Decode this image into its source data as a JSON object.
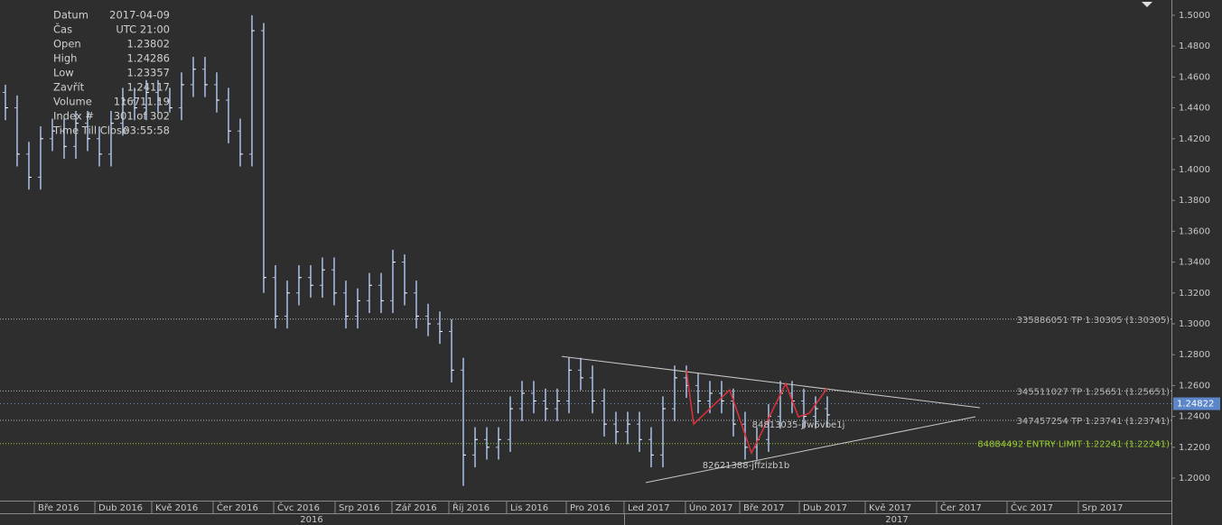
{
  "chart_data": {
    "type": "ohlc",
    "info": [
      [
        "Datum",
        "2017-04-09"
      ],
      [
        "Čas",
        "UTC 21:00"
      ],
      [
        "Open",
        "1.23802"
      ],
      [
        "High",
        "1.24286"
      ],
      [
        "Low",
        "1.23357"
      ],
      [
        "Zavřít",
        "1.24117"
      ],
      [
        "Volume",
        "116711.19"
      ],
      [
        "Index #",
        "301 of 302"
      ],
      [
        "Time Till Close",
        "03:55:58"
      ]
    ],
    "color": "#a9c1e6",
    "open": [
      1.45,
      1.44,
      1.41,
      1.395,
      1.42,
      1.425,
      1.415,
      1.43,
      1.42,
      1.41,
      1.43,
      1.445,
      1.44,
      1.45,
      1.445,
      1.44,
      1.455,
      1.465,
      1.455,
      1.445,
      1.425,
      1.41,
      1.49,
      1.33,
      1.305,
      1.32,
      1.33,
      1.325,
      1.335,
      1.32,
      1.305,
      1.315,
      1.325,
      1.315,
      1.34,
      1.32,
      1.305,
      1.3,
      1.295,
      1.27,
      1.215,
      1.225,
      1.22,
      1.225,
      1.245,
      1.255,
      1.25,
      1.245,
      1.25,
      1.27,
      1.265,
      1.25,
      1.235,
      1.23,
      1.235,
      1.225,
      1.215,
      1.245,
      1.265,
      1.26,
      1.25,
      1.255,
      1.25,
      1.235,
      1.22,
      1.225,
      1.24,
      1.255,
      1.25,
      1.24,
      1.245
    ],
    "high": [
      1.455,
      1.448,
      1.418,
      1.428,
      1.433,
      1.433,
      1.438,
      1.438,
      1.428,
      1.438,
      1.453,
      1.453,
      1.458,
      1.458,
      1.453,
      1.463,
      1.473,
      1.473,
      1.463,
      1.453,
      1.433,
      1.5,
      1.495,
      1.338,
      1.328,
      1.338,
      1.338,
      1.343,
      1.343,
      1.328,
      1.323,
      1.333,
      1.333,
      1.348,
      1.345,
      1.328,
      1.313,
      1.308,
      1.303,
      1.278,
      1.233,
      1.233,
      1.233,
      1.253,
      1.263,
      1.263,
      1.258,
      1.258,
      1.278,
      1.278,
      1.273,
      1.258,
      1.243,
      1.243,
      1.243,
      1.233,
      1.253,
      1.273,
      1.273,
      1.268,
      1.263,
      1.263,
      1.258,
      1.243,
      1.233,
      1.248,
      1.263,
      1.263,
      1.258,
      1.253,
      1.253
    ],
    "low": [
      1.432,
      1.402,
      1.387,
      1.387,
      1.412,
      1.407,
      1.407,
      1.412,
      1.402,
      1.402,
      1.422,
      1.432,
      1.432,
      1.437,
      1.437,
      1.432,
      1.447,
      1.447,
      1.437,
      1.417,
      1.402,
      1.402,
      1.32,
      1.297,
      1.297,
      1.312,
      1.317,
      1.317,
      1.312,
      1.297,
      1.297,
      1.307,
      1.307,
      1.307,
      1.312,
      1.297,
      1.292,
      1.287,
      1.262,
      1.195,
      1.207,
      1.212,
      1.212,
      1.217,
      1.237,
      1.242,
      1.237,
      1.237,
      1.242,
      1.257,
      1.242,
      1.227,
      1.222,
      1.222,
      1.217,
      1.207,
      1.207,
      1.237,
      1.252,
      1.242,
      1.242,
      1.242,
      1.227,
      1.212,
      1.212,
      1.217,
      1.232,
      1.242,
      1.232,
      1.232,
      1.233
    ],
    "close": [
      1.44,
      1.41,
      1.395,
      1.42,
      1.425,
      1.415,
      1.43,
      1.42,
      1.41,
      1.43,
      1.445,
      1.44,
      1.45,
      1.445,
      1.44,
      1.455,
      1.465,
      1.455,
      1.445,
      1.425,
      1.41,
      1.49,
      1.33,
      1.305,
      1.32,
      1.33,
      1.325,
      1.335,
      1.32,
      1.305,
      1.315,
      1.325,
      1.315,
      1.34,
      1.32,
      1.305,
      1.3,
      1.295,
      1.27,
      1.215,
      1.225,
      1.22,
      1.225,
      1.245,
      1.255,
      1.25,
      1.245,
      1.25,
      1.27,
      1.265,
      1.25,
      1.235,
      1.23,
      1.235,
      1.225,
      1.215,
      1.245,
      1.265,
      1.26,
      1.25,
      1.255,
      1.25,
      1.235,
      1.22,
      1.225,
      1.24,
      1.255,
      1.25,
      1.24,
      1.245,
      1.241
    ],
    "xlim": [
      -0.46,
      99.31
    ],
    "ylim": [
      1.1854,
      1.5099
    ],
    "xticks": [
      {
        "value": 2.46,
        "label": "Bře 2016"
      },
      {
        "value": 7.62,
        "label": "Dub 2016"
      },
      {
        "value": 12.46,
        "label": "Kvě 2016"
      },
      {
        "value": 17.69,
        "label": "Čer 2016"
      },
      {
        "value": 22.85,
        "label": "Čvc 2016"
      },
      {
        "value": 28.08,
        "label": "Srp 2016"
      },
      {
        "value": 32.92,
        "label": "Zář 2016"
      },
      {
        "value": 37.77,
        "label": "Říj 2016"
      },
      {
        "value": 42.69,
        "label": "Lis 2016"
      },
      {
        "value": 47.77,
        "label": "Pro 2016"
      },
      {
        "value": 52.69,
        "label": "Led 2017"
      },
      {
        "value": 57.92,
        "label": "Úno 2017"
      },
      {
        "value": 62.54,
        "label": "Bře 2017"
      },
      {
        "value": 67.62,
        "label": "Dub 2017"
      },
      {
        "value": 73.23,
        "label": "Kvě 2017"
      },
      {
        "value": 79.31,
        "label": "Čer 2017"
      },
      {
        "value": 85.31,
        "label": "Čvc 2017"
      },
      {
        "value": 91.38,
        "label": "Srp 2017"
      }
    ],
    "years": [
      "2016",
      "2017"
    ],
    "yticks": [
      {
        "value": 1.2,
        "label": "1.2000"
      },
      {
        "value": 1.22,
        "label": "1.2200"
      },
      {
        "value": 1.24,
        "label": "1.2400"
      },
      {
        "value": 1.26,
        "label": "1.2600"
      },
      {
        "value": 1.28,
        "label": "1.2800"
      },
      {
        "value": 1.3,
        "label": "1.3000"
      },
      {
        "value": 1.32,
        "label": "1.3200"
      },
      {
        "value": 1.34,
        "label": "1.3400"
      },
      {
        "value": 1.36,
        "label": "1.3600"
      },
      {
        "value": 1.38,
        "label": "1.3800"
      },
      {
        "value": 1.4,
        "label": "1.4000"
      },
      {
        "value": 1.42,
        "label": "1.4200"
      },
      {
        "value": 1.44,
        "label": "1.4400"
      },
      {
        "value": 1.46,
        "label": "1.4600"
      },
      {
        "value": 1.48,
        "label": "1.4800"
      },
      {
        "value": 1.5,
        "label": "1.5000"
      }
    ],
    "orders": [
      {
        "label": "335886051 TP 1.30305 (1.30305)",
        "value": 1.30305,
        "color": "#b8b8b8"
      },
      {
        "label": "345511027 TP 1.25651 (1.25651)",
        "value": 1.25651,
        "color": "#b8b8b8"
      },
      {
        "label": "347457254 TP 1.23741 (1.23741)",
        "value": 1.23741,
        "color": "#b8b8b8"
      },
      {
        "label": "84884492 ENTRY LIMIT 1.22241 (1.22241)",
        "value": 1.22241,
        "color": "#9acd32"
      }
    ],
    "current_price": {
      "value": 1.24822,
      "label": "1.24822"
    },
    "trendlines": [
      {
        "x": [
          47.38,
          83.0
        ],
        "y": [
          1.2789,
          1.2456
        ]
      },
      {
        "x": [
          54.54,
          82.62
        ],
        "y": [
          1.1971,
          1.2398
        ]
      }
    ],
    "zigzag": {
      "color": "#e0303a",
      "x": [
        58.0,
        58.62,
        61.69,
        63.54,
        66.46,
        67.54,
        68.46,
        70.0
      ],
      "y": [
        1.2701,
        1.235,
        1.2572,
        1.2163,
        1.2613,
        1.2397,
        1.242,
        1.2584
      ]
    },
    "pattern_labels": [
      "84813035-jfw6vbe1j",
      "82621388-jffzizb1b"
    ]
  }
}
